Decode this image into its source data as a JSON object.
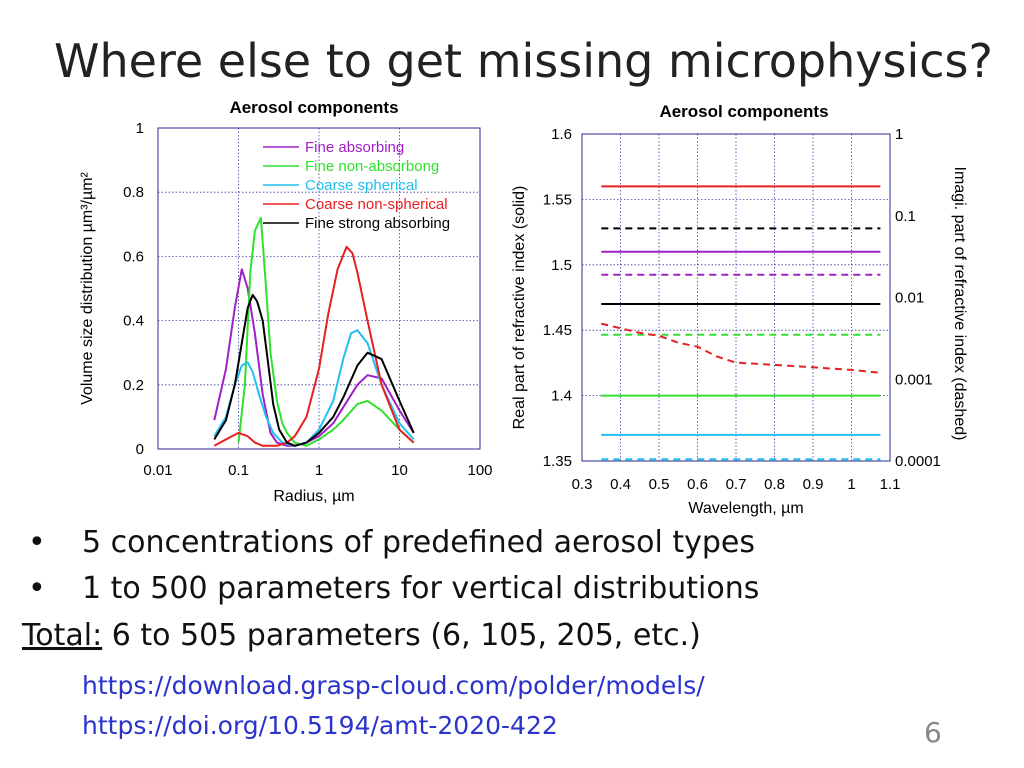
{
  "slide": {
    "title": "Where else to get missing microphysics?",
    "bullets": [
      "5 concentrations of predefined aerosol types",
      "1 to 500 parameters for vertical distributions"
    ],
    "bullet_symbol": "•",
    "total_label": "Total:",
    "total_text": " 6 to 505 parameters (6, 105, 205, etc.)",
    "links": [
      "https://download.grasp-cloud.com/polder/models/",
      "https://doi.org/10.5194/amt-2020-422"
    ],
    "page_number": "6"
  },
  "chart_data": [
    {
      "type": "line",
      "title": "Aerosol components",
      "xlabel": "Radius, µm",
      "ylabel": "Volume size distribution µm³/µm²",
      "xscale": "log",
      "xlim": [
        0.01,
        100
      ],
      "ylim": [
        0,
        1
      ],
      "xticks": [
        "0.01",
        "0.1",
        "1",
        "10",
        "100"
      ],
      "yticks": [
        "0",
        "0.2",
        "0.4",
        "0.6",
        "0.8",
        "1"
      ],
      "grid": true,
      "legend_position": "top-right",
      "series": [
        {
          "name": "Fine absorbing",
          "color": "#a020c8",
          "x": [
            0.05,
            0.07,
            0.09,
            0.11,
            0.13,
            0.16,
            0.2,
            0.25,
            0.3,
            0.4,
            0.5,
            0.7,
            1,
            1.5,
            2,
            3,
            4,
            6,
            10,
            15
          ],
          "y": [
            0.09,
            0.25,
            0.44,
            0.56,
            0.5,
            0.36,
            0.17,
            0.05,
            0.02,
            0.01,
            0.01,
            0.02,
            0.04,
            0.08,
            0.13,
            0.2,
            0.23,
            0.22,
            0.12,
            0.05
          ]
        },
        {
          "name": "Fine non-absorbong",
          "color": "#30e030",
          "x": [
            0.1,
            0.12,
            0.14,
            0.16,
            0.19,
            0.22,
            0.25,
            0.3,
            0.35,
            0.4,
            0.5,
            0.7,
            1,
            1.5,
            2,
            3,
            4,
            6,
            10,
            15
          ],
          "y": [
            0.02,
            0.2,
            0.55,
            0.68,
            0.72,
            0.5,
            0.3,
            0.15,
            0.08,
            0.05,
            0.02,
            0.01,
            0.03,
            0.06,
            0.09,
            0.14,
            0.15,
            0.12,
            0.06,
            0.02
          ]
        },
        {
          "name": "Coarse spherical",
          "color": "#20c0f0",
          "x": [
            0.05,
            0.07,
            0.09,
            0.11,
            0.13,
            0.15,
            0.18,
            0.22,
            0.27,
            0.35,
            0.5,
            0.7,
            1,
            1.5,
            2,
            2.5,
            3,
            4,
            6,
            10,
            15
          ],
          "y": [
            0.04,
            0.1,
            0.2,
            0.26,
            0.27,
            0.24,
            0.17,
            0.1,
            0.05,
            0.02,
            0.01,
            0.02,
            0.06,
            0.15,
            0.28,
            0.36,
            0.37,
            0.33,
            0.2,
            0.08,
            0.03
          ]
        },
        {
          "name": "Coarse non-spherical",
          "color": "#e82020",
          "x": [
            0.05,
            0.07,
            0.1,
            0.13,
            0.16,
            0.2,
            0.25,
            0.3,
            0.4,
            0.5,
            0.7,
            1,
            1.3,
            1.7,
            2.2,
            2.6,
            3,
            4,
            6,
            10,
            15
          ],
          "y": [
            0.01,
            0.03,
            0.05,
            0.04,
            0.02,
            0.01,
            0.01,
            0.01,
            0.02,
            0.04,
            0.1,
            0.25,
            0.42,
            0.56,
            0.63,
            0.61,
            0.55,
            0.4,
            0.2,
            0.06,
            0.02
          ]
        },
        {
          "name": "Fine strong absorbing",
          "color": "#000000",
          "x": [
            0.05,
            0.07,
            0.09,
            0.11,
            0.13,
            0.15,
            0.17,
            0.2,
            0.23,
            0.27,
            0.32,
            0.4,
            0.5,
            0.7,
            1,
            1.5,
            2,
            3,
            4,
            6,
            10,
            15
          ],
          "y": [
            0.03,
            0.09,
            0.2,
            0.33,
            0.44,
            0.48,
            0.46,
            0.4,
            0.28,
            0.14,
            0.06,
            0.02,
            0.01,
            0.02,
            0.05,
            0.1,
            0.16,
            0.26,
            0.3,
            0.28,
            0.15,
            0.05
          ]
        }
      ]
    },
    {
      "type": "line",
      "title": "Aerosol components",
      "xlabel": "Wavelength, µm",
      "ylabel": "Real part of refractive index (solid)",
      "y2label": "Imagi. part of refractive index (dashed)",
      "xlim": [
        0.3,
        1.1
      ],
      "ylim": [
        1.35,
        1.6
      ],
      "y2scale": "log",
      "y2lim": [
        0.0001,
        1
      ],
      "xticks": [
        "0.3",
        "0.4",
        "0.5",
        "0.6",
        "0.7",
        "0.8",
        "0.9",
        "1",
        "1.1"
      ],
      "yticks": [
        "1.35",
        "1.4",
        "1.45",
        "1.5",
        "1.55",
        "1.6"
      ],
      "y2ticks": [
        "0.0001",
        "0.001",
        "0.01",
        "0.1",
        "1"
      ],
      "grid": true,
      "x_range": [
        0.35,
        1.075
      ],
      "solid_series": [
        {
          "color": "#e82020",
          "y": 1.56
        },
        {
          "color": "#a020c8",
          "y": 1.51
        },
        {
          "color": "#000000",
          "y": 1.47
        },
        {
          "color": "#30e030",
          "y": 1.4
        },
        {
          "color": "#20c0f0",
          "y": 1.37
        }
      ],
      "dashed_series": [
        {
          "color": "#000000",
          "x": [
            0.35,
            1.075
          ],
          "y": [
            0.07,
            0.07
          ]
        },
        {
          "color": "#a020c8",
          "x": [
            0.35,
            1.075
          ],
          "y": [
            0.019,
            0.019
          ]
        },
        {
          "color": "#30e030",
          "x": [
            0.35,
            1.075
          ],
          "y": [
            0.0035,
            0.0035
          ]
        },
        {
          "color": "#e82020",
          "x": [
            0.35,
            0.4,
            0.45,
            0.5,
            0.55,
            0.6,
            0.65,
            0.7,
            0.8,
            0.9,
            1,
            1.075
          ],
          "y": [
            0.0048,
            0.0042,
            0.0037,
            0.0034,
            0.0028,
            0.0025,
            0.0019,
            0.0016,
            0.0015,
            0.0014,
            0.0013,
            0.0012
          ]
        },
        {
          "color": "#20c0f0",
          "x": [
            0.35,
            1.075
          ],
          "y": [
            0.000105,
            0.000105
          ]
        }
      ]
    }
  ]
}
